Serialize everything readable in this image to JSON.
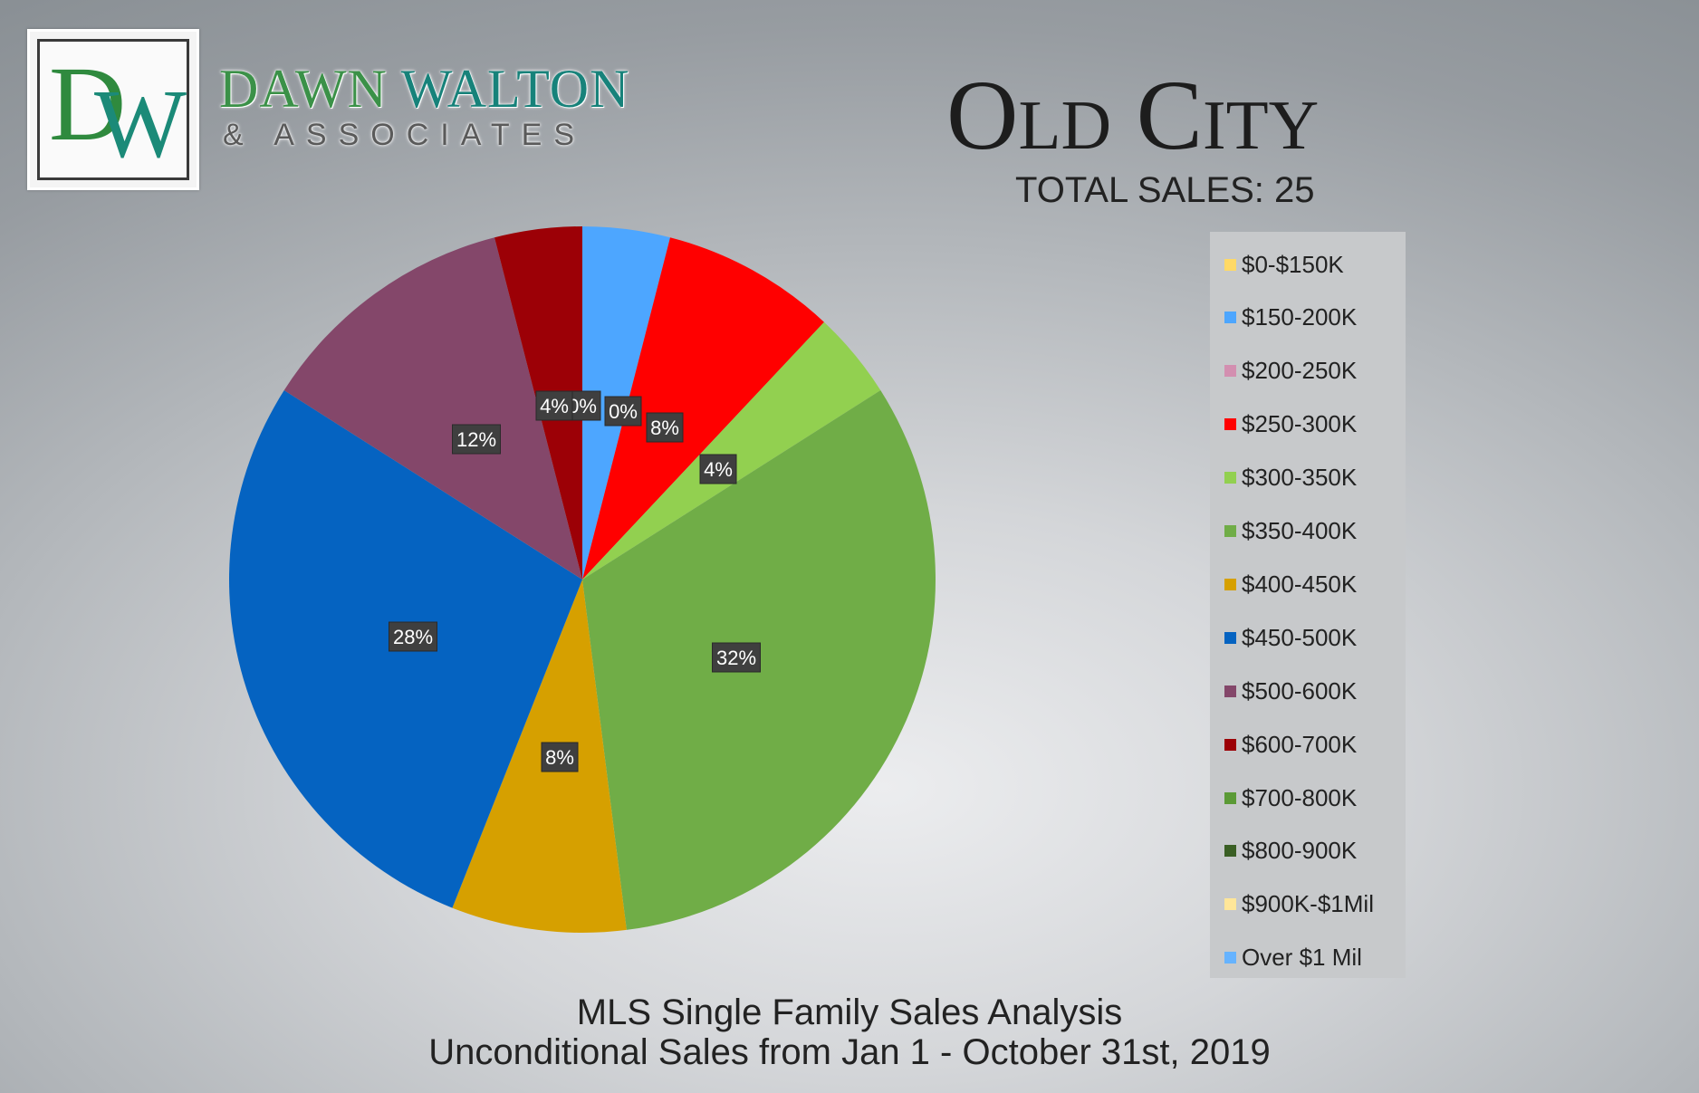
{
  "brand": {
    "logo_letter_1": "D",
    "logo_letter_2": "W",
    "name_word_1": "DAWN",
    "name_word_2": "WALTON",
    "sub": "& ASSOCIATES"
  },
  "header": {
    "title": "Old City",
    "total_sales": "TOTAL SALES: 25"
  },
  "footer": {
    "line1": "MLS Single Family Sales Analysis",
    "line2": "Unconditional Sales from Jan 1 - October 31st, 2019"
  },
  "chart_data": {
    "type": "pie",
    "legend_position": "right",
    "categories": [
      "$0-$150K",
      "$150-200K",
      "$200-250K",
      "$250-300K",
      "$300-350K",
      "$350-400K",
      "$400-450K",
      "$450-500K",
      "$500-600K",
      "$600-700K",
      "$700-800K",
      "$800-900K",
      "$900K-$1Mil",
      "Over $1 Mil"
    ],
    "values": [
      0,
      4,
      0,
      8,
      4,
      32,
      8,
      28,
      12,
      4,
      0,
      0,
      0,
      0
    ],
    "colors": [
      "#ffd966",
      "#4da6ff",
      "#d38fb0",
      "#ff0000",
      "#92d050",
      "#70ad47",
      "#d6a000",
      "#0563c1",
      "#84476a",
      "#9c0006",
      "#5b9a36",
      "#3a5f24",
      "#ffe699",
      "#66b3ff"
    ],
    "data_labels": [
      {
        "text": "0%",
        "value": 0
      },
      {
        "text": "0%",
        "value": 0
      },
      {
        "text": "8%",
        "value": 8
      },
      {
        "text": "4%",
        "value": 4
      },
      {
        "text": "32%",
        "value": 32
      },
      {
        "text": "8%",
        "value": 8
      },
      {
        "text": "28%",
        "value": 28
      },
      {
        "text": "12%",
        "value": 12
      },
      {
        "text": "4%",
        "value": 4
      }
    ]
  }
}
